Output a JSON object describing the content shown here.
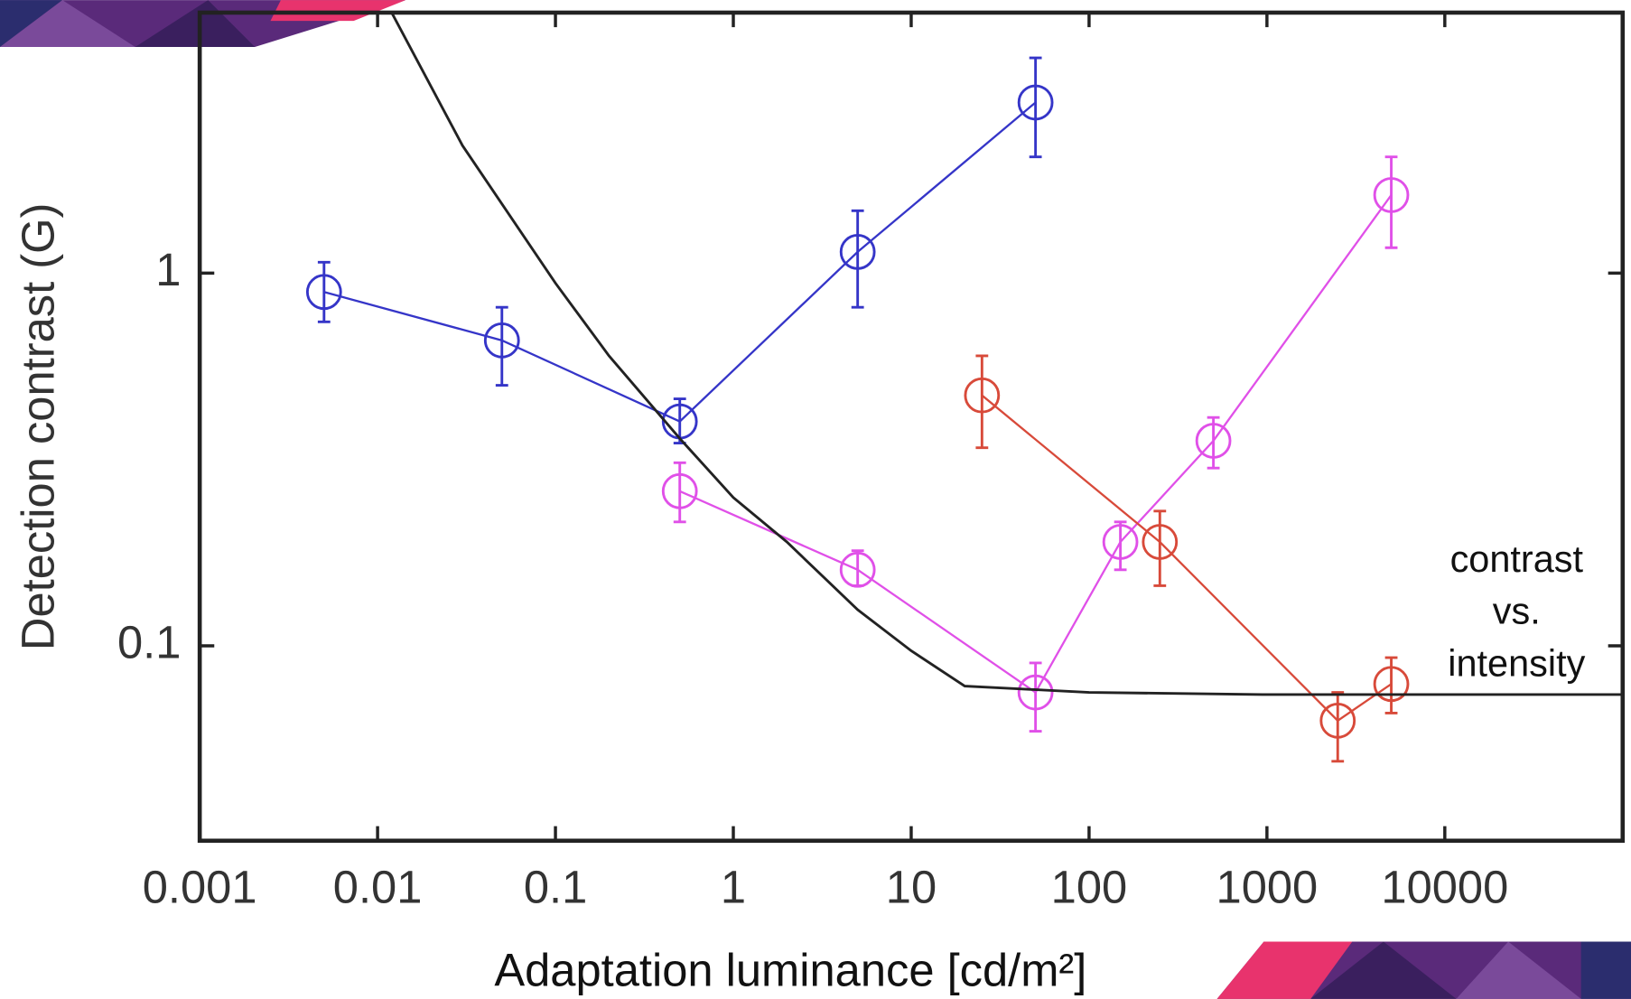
{
  "chart_data": {
    "type": "scatter",
    "xlabel": "Adaptation luminance [cd/m²]",
    "ylabel": "Detection contrast (G)",
    "annotation": [
      "contrast",
      "vs.",
      "intensity"
    ],
    "log_x": true,
    "log_y": true,
    "xlim": [
      0.001,
      100000
    ],
    "ylim": [
      0.03,
      5
    ],
    "xticks": [
      0.001,
      0.01,
      0.1,
      1,
      10,
      100,
      1000,
      10000
    ],
    "yticks": [
      0.1,
      1
    ],
    "series": [
      {
        "color": "#3535c8",
        "x": [
          0.005,
          0.05,
          0.5,
          5,
          50
        ],
        "values": [
          0.89,
          0.66,
          0.4,
          1.14,
          2.87
        ],
        "upper": [
          1.07,
          0.81,
          0.46,
          1.47,
          3.78
        ],
        "lower": [
          0.74,
          0.5,
          0.35,
          0.81,
          2.05
        ]
      },
      {
        "color": "#e050e8",
        "x": [
          0.5,
          5,
          50,
          150,
          500,
          5000
        ],
        "values": [
          0.26,
          0.16,
          0.075,
          0.19,
          0.355,
          1.62
        ],
        "upper": [
          0.31,
          0.18,
          0.09,
          0.215,
          0.41,
          2.05
        ],
        "lower": [
          0.215,
          0.145,
          0.059,
          0.16,
          0.3,
          1.17
        ]
      },
      {
        "color": "#d84a3a",
        "x": [
          25,
          250,
          2500,
          5000
        ],
        "values": [
          0.47,
          0.19,
          0.063,
          0.079
        ],
        "upper": [
          0.6,
          0.23,
          0.075,
          0.093
        ],
        "lower": [
          0.34,
          0.145,
          0.049,
          0.066
        ]
      },
      {
        "color": "#222222",
        "style": "line",
        "x": [
          0.012,
          0.03,
          0.1,
          0.2,
          0.5,
          1,
          2,
          5,
          10,
          20,
          100,
          1000,
          100000
        ],
        "values": [
          5,
          2.2,
          0.94,
          0.6,
          0.36,
          0.25,
          0.19,
          0.125,
          0.097,
          0.078,
          0.075,
          0.074,
          0.074
        ]
      }
    ]
  }
}
